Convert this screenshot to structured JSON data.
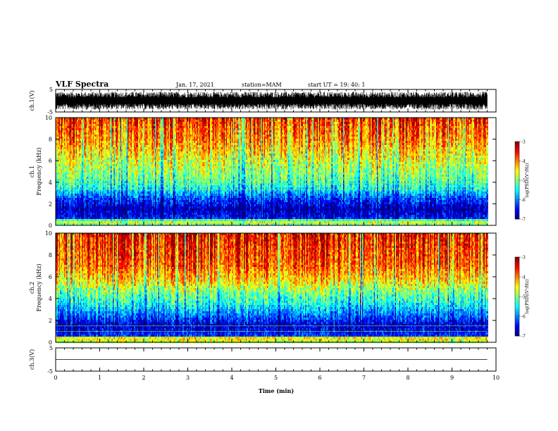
{
  "header": {
    "title": "VLF Spectra",
    "date": "Jan. 17, 2021",
    "station": "station=MAM",
    "start": "start UT =  19: 40: 1"
  },
  "chart_data": [
    {
      "type": "line",
      "name": "ch1_waveform",
      "ylabel": "ch.1(V)",
      "ylim": [
        -5,
        5
      ],
      "yticks": [
        5,
        -5
      ],
      "xlim": [
        0,
        10
      ],
      "note_values": "broadband noise waveform filling approximately -4 V to +4 V for the full record (0 to 9.8 min)",
      "amplitude_range": [
        -4,
        4
      ]
    },
    {
      "type": "heatmap",
      "name": "ch1_spectrogram",
      "ylabel_top": "ch.1",
      "ylabel": "Frequency (kHz)",
      "ylim": [
        0,
        10
      ],
      "yticks": [
        0,
        2,
        4,
        6,
        8,
        10
      ],
      "xlim": [
        0,
        10
      ],
      "data_xmax": 9.8,
      "colorbar": {
        "label": "log(PSD)(V²/Hz)",
        "min": -7,
        "max": -3,
        "ticks": [
          -3,
          -4,
          -5,
          -6,
          -7
        ]
      },
      "profile": [
        {
          "f": 0,
          "level": -5.2
        },
        {
          "f": 0.4,
          "level": -4.4
        },
        {
          "f": 0.6,
          "level": -6.4
        },
        {
          "f": 1.5,
          "level": -6.8
        },
        {
          "f": 2.5,
          "level": -6.2
        },
        {
          "f": 3.5,
          "level": -5.4
        },
        {
          "f": 4.5,
          "level": -5.0
        },
        {
          "f": 6.0,
          "level": -4.6
        },
        {
          "f": 8.0,
          "level": -4.0
        },
        {
          "f": 10.0,
          "level": -3.6
        }
      ],
      "lines_khz": [
        0.5,
        3.3,
        3.9,
        4.3
      ]
    },
    {
      "type": "heatmap",
      "name": "ch2_spectrogram",
      "ylabel_top": "ch.2",
      "ylabel": "Frequency (kHz)",
      "ylim": [
        0,
        10
      ],
      "yticks": [
        0,
        2,
        4,
        6,
        8,
        10
      ],
      "xlim": [
        0,
        10
      ],
      "data_xmax": 9.8,
      "colorbar": {
        "label": "log(PSD)(V²/Hz)",
        "min": -7,
        "max": -3,
        "ticks": [
          -3,
          -4,
          -5,
          -6,
          -7
        ]
      },
      "profile": [
        {
          "f": 0,
          "level": -4.8
        },
        {
          "f": 0.4,
          "level": -4.2
        },
        {
          "f": 0.6,
          "level": -6.3
        },
        {
          "f": 1.5,
          "level": -6.7
        },
        {
          "f": 2.5,
          "level": -6.0
        },
        {
          "f": 3.5,
          "level": -5.4
        },
        {
          "f": 4.5,
          "level": -5.0
        },
        {
          "f": 5.5,
          "level": -4.4
        },
        {
          "f": 7.0,
          "level": -3.8
        },
        {
          "f": 10.0,
          "level": -3.4
        }
      ],
      "lines_khz": [
        0.5,
        1.0,
        1.5
      ]
    },
    {
      "type": "line",
      "name": "ch3_waveform",
      "ylabel": "ch.3(V)",
      "ylim": [
        -5,
        5
      ],
      "yticks": [
        5,
        -5
      ],
      "xlim": [
        0,
        10
      ],
      "xticks": [
        0,
        1,
        2,
        3,
        4,
        5,
        6,
        7,
        8,
        9,
        10
      ],
      "xlabel": "Time (min)",
      "x": [
        0,
        9.8
      ],
      "values": [
        0,
        0
      ]
    }
  ]
}
